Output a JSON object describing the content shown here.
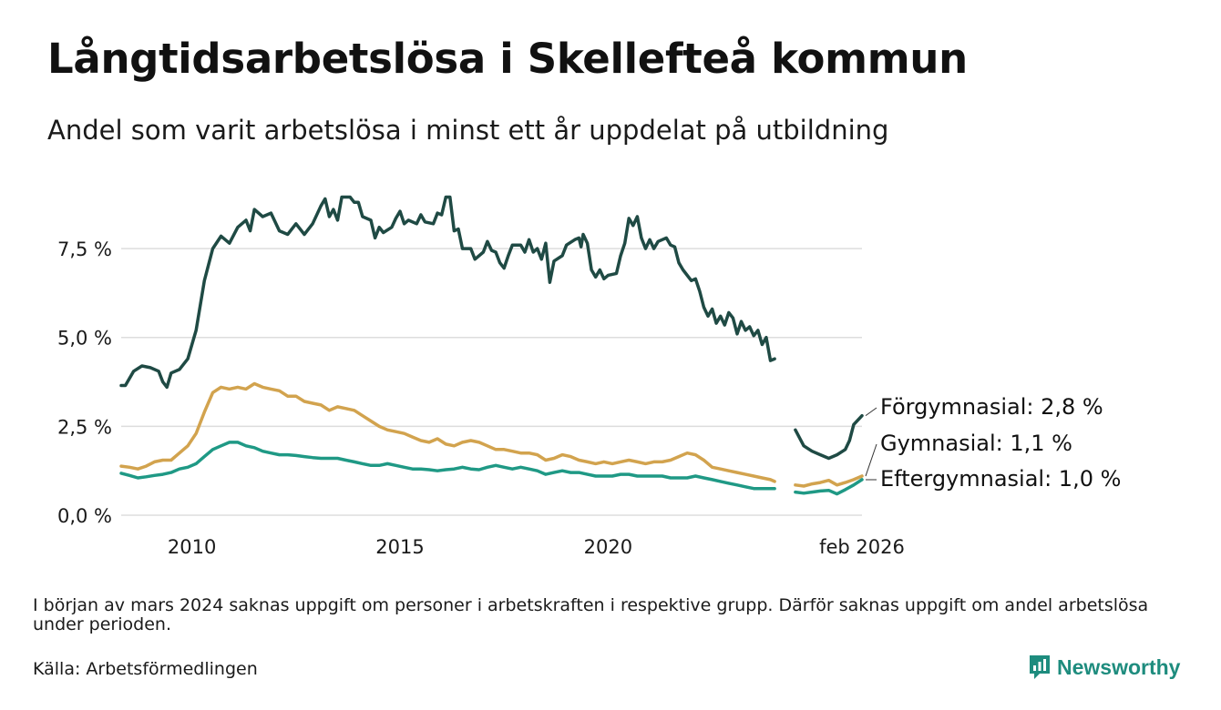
{
  "title": "Långtidsarbetslösa i Skellefteå kommun",
  "subtitle": "Andel som varit arbetslösa i minst ett år uppdelat på utbildning",
  "note": "I början av mars 2024 saknas uppgift om personer i arbetskraften i respektive grupp. Därför saknas uppgift om andel arbetslösa under perioden.",
  "source": "Källa: Arbetsförmedlingen",
  "brand": "Newsworthy",
  "colors": {
    "forgymnasial": "#1f4a44",
    "gymnasial": "#d2a34e",
    "eftergymnasial": "#1f9985",
    "grid": "#dddddd",
    "brand": "#1e8c7e"
  },
  "chart_data": {
    "type": "line",
    "title": "Långtidsarbetslösa i Skellefteå kommun",
    "xlabel": "",
    "ylabel": "",
    "ylim": [
      0,
      9.5
    ],
    "xlim": [
      2008.3,
      2026.1
    ],
    "y_ticks": [
      0,
      2.5,
      5.0,
      7.5
    ],
    "y_tick_labels": [
      "0,0 %",
      "2,5 %",
      "5,0 %",
      "7,5 %"
    ],
    "x_ticks": [
      2010,
      2015,
      2020,
      2026.1
    ],
    "x_tick_labels": [
      "2010",
      "2015",
      "2020",
      "feb 2026"
    ],
    "gap": {
      "from": 2024.0,
      "to": 2024.5
    },
    "series": [
      {
        "name": "Förgymnasial",
        "end_label": "Förgymnasial: 2,8 %",
        "color_key": "forgymnasial",
        "points": [
          [
            2008.3,
            3.65
          ],
          [
            2008.4,
            3.65
          ],
          [
            2008.6,
            4.05
          ],
          [
            2008.8,
            4.2
          ],
          [
            2009.0,
            4.15
          ],
          [
            2009.2,
            4.05
          ],
          [
            2009.3,
            3.75
          ],
          [
            2009.4,
            3.6
          ],
          [
            2009.5,
            4.0
          ],
          [
            2009.7,
            4.1
          ],
          [
            2009.9,
            4.4
          ],
          [
            2010.1,
            5.2
          ],
          [
            2010.3,
            6.6
          ],
          [
            2010.5,
            7.5
          ],
          [
            2010.7,
            7.85
          ],
          [
            2010.9,
            7.65
          ],
          [
            2011.1,
            8.1
          ],
          [
            2011.3,
            8.3
          ],
          [
            2011.4,
            8.0
          ],
          [
            2011.5,
            8.6
          ],
          [
            2011.7,
            8.4
          ],
          [
            2011.9,
            8.5
          ],
          [
            2012.1,
            8.0
          ],
          [
            2012.3,
            7.9
          ],
          [
            2012.5,
            8.2
          ],
          [
            2012.7,
            7.9
          ],
          [
            2012.9,
            8.2
          ],
          [
            2013.1,
            8.7
          ],
          [
            2013.2,
            8.9
          ],
          [
            2013.3,
            8.4
          ],
          [
            2013.4,
            8.6
          ],
          [
            2013.5,
            8.3
          ],
          [
            2013.6,
            8.95
          ],
          [
            2013.8,
            8.95
          ],
          [
            2013.9,
            8.8
          ],
          [
            2014.0,
            8.8
          ],
          [
            2014.1,
            8.4
          ],
          [
            2014.3,
            8.3
          ],
          [
            2014.4,
            7.8
          ],
          [
            2014.5,
            8.1
          ],
          [
            2014.6,
            7.95
          ],
          [
            2014.8,
            8.1
          ],
          [
            2014.9,
            8.35
          ],
          [
            2015.0,
            8.55
          ],
          [
            2015.1,
            8.2
          ],
          [
            2015.2,
            8.3
          ],
          [
            2015.4,
            8.2
          ],
          [
            2015.5,
            8.45
          ],
          [
            2015.6,
            8.25
          ],
          [
            2015.8,
            8.2
          ],
          [
            2015.9,
            8.5
          ],
          [
            2016.0,
            8.45
          ],
          [
            2016.1,
            8.95
          ],
          [
            2016.2,
            8.95
          ],
          [
            2016.3,
            8.0
          ],
          [
            2016.4,
            8.05
          ],
          [
            2016.5,
            7.5
          ],
          [
            2016.7,
            7.5
          ],
          [
            2016.8,
            7.2
          ],
          [
            2017.0,
            7.4
          ],
          [
            2017.1,
            7.7
          ],
          [
            2017.2,
            7.45
          ],
          [
            2017.3,
            7.4
          ],
          [
            2017.4,
            7.1
          ],
          [
            2017.5,
            6.95
          ],
          [
            2017.6,
            7.3
          ],
          [
            2017.7,
            7.6
          ],
          [
            2017.9,
            7.6
          ],
          [
            2018.0,
            7.4
          ],
          [
            2018.1,
            7.75
          ],
          [
            2018.2,
            7.4
          ],
          [
            2018.3,
            7.5
          ],
          [
            2018.4,
            7.2
          ],
          [
            2018.5,
            7.65
          ],
          [
            2018.6,
            6.55
          ],
          [
            2018.7,
            7.15
          ],
          [
            2018.9,
            7.3
          ],
          [
            2019.0,
            7.6
          ],
          [
            2019.2,
            7.75
          ],
          [
            2019.3,
            7.8
          ],
          [
            2019.35,
            7.55
          ],
          [
            2019.4,
            7.9
          ],
          [
            2019.5,
            7.65
          ],
          [
            2019.6,
            6.9
          ],
          [
            2019.7,
            6.7
          ],
          [
            2019.8,
            6.9
          ],
          [
            2019.9,
            6.65
          ],
          [
            2020.0,
            6.75
          ],
          [
            2020.2,
            6.8
          ],
          [
            2020.3,
            7.3
          ],
          [
            2020.4,
            7.65
          ],
          [
            2020.5,
            8.35
          ],
          [
            2020.6,
            8.15
          ],
          [
            2020.7,
            8.4
          ],
          [
            2020.8,
            7.8
          ],
          [
            2020.9,
            7.5
          ],
          [
            2021.0,
            7.75
          ],
          [
            2021.1,
            7.5
          ],
          [
            2021.2,
            7.7
          ],
          [
            2021.3,
            7.75
          ],
          [
            2021.4,
            7.8
          ],
          [
            2021.5,
            7.6
          ],
          [
            2021.6,
            7.55
          ],
          [
            2021.7,
            7.1
          ],
          [
            2021.8,
            6.9
          ],
          [
            2022.0,
            6.6
          ],
          [
            2022.1,
            6.65
          ],
          [
            2022.2,
            6.3
          ],
          [
            2022.3,
            5.85
          ],
          [
            2022.4,
            5.6
          ],
          [
            2022.5,
            5.8
          ],
          [
            2022.6,
            5.4
          ],
          [
            2022.7,
            5.6
          ],
          [
            2022.8,
            5.35
          ],
          [
            2022.9,
            5.7
          ],
          [
            2023.0,
            5.55
          ],
          [
            2023.1,
            5.1
          ],
          [
            2023.2,
            5.45
          ],
          [
            2023.3,
            5.2
          ],
          [
            2023.4,
            5.3
          ],
          [
            2023.5,
            5.05
          ],
          [
            2023.6,
            5.2
          ],
          [
            2023.7,
            4.8
          ],
          [
            2023.8,
            5.0
          ],
          [
            2023.9,
            4.35
          ],
          [
            2024.0,
            4.4
          ]
        ]
      },
      {
        "name": "Gymnasial",
        "end_label": "Gymnasial: 1,1 %",
        "color_key": "gymnasial",
        "points": [
          [
            2008.3,
            1.38
          ],
          [
            2008.5,
            1.35
          ],
          [
            2008.7,
            1.3
          ],
          [
            2008.9,
            1.38
          ],
          [
            2009.1,
            1.5
          ],
          [
            2009.3,
            1.55
          ],
          [
            2009.5,
            1.55
          ],
          [
            2009.7,
            1.75
          ],
          [
            2009.9,
            1.95
          ],
          [
            2010.1,
            2.3
          ],
          [
            2010.3,
            2.9
          ],
          [
            2010.5,
            3.45
          ],
          [
            2010.7,
            3.6
          ],
          [
            2010.9,
            3.55
          ],
          [
            2011.1,
            3.6
          ],
          [
            2011.3,
            3.55
          ],
          [
            2011.5,
            3.7
          ],
          [
            2011.7,
            3.6
          ],
          [
            2011.9,
            3.55
          ],
          [
            2012.1,
            3.5
          ],
          [
            2012.3,
            3.35
          ],
          [
            2012.5,
            3.35
          ],
          [
            2012.7,
            3.2
          ],
          [
            2012.9,
            3.15
          ],
          [
            2013.1,
            3.1
          ],
          [
            2013.3,
            2.95
          ],
          [
            2013.5,
            3.05
          ],
          [
            2013.7,
            3.0
          ],
          [
            2013.9,
            2.95
          ],
          [
            2014.1,
            2.8
          ],
          [
            2014.3,
            2.65
          ],
          [
            2014.5,
            2.5
          ],
          [
            2014.7,
            2.4
          ],
          [
            2014.9,
            2.35
          ],
          [
            2015.1,
            2.3
          ],
          [
            2015.3,
            2.2
          ],
          [
            2015.5,
            2.1
          ],
          [
            2015.7,
            2.05
          ],
          [
            2015.9,
            2.15
          ],
          [
            2016.1,
            2.0
          ],
          [
            2016.3,
            1.95
          ],
          [
            2016.5,
            2.05
          ],
          [
            2016.7,
            2.1
          ],
          [
            2016.9,
            2.05
          ],
          [
            2017.1,
            1.95
          ],
          [
            2017.3,
            1.85
          ],
          [
            2017.5,
            1.85
          ],
          [
            2017.7,
            1.8
          ],
          [
            2017.9,
            1.75
          ],
          [
            2018.1,
            1.75
          ],
          [
            2018.3,
            1.7
          ],
          [
            2018.5,
            1.55
          ],
          [
            2018.7,
            1.6
          ],
          [
            2018.9,
            1.7
          ],
          [
            2019.1,
            1.65
          ],
          [
            2019.3,
            1.55
          ],
          [
            2019.5,
            1.5
          ],
          [
            2019.7,
            1.45
          ],
          [
            2019.9,
            1.5
          ],
          [
            2020.1,
            1.45
          ],
          [
            2020.3,
            1.5
          ],
          [
            2020.5,
            1.55
          ],
          [
            2020.7,
            1.5
          ],
          [
            2020.9,
            1.45
          ],
          [
            2021.1,
            1.5
          ],
          [
            2021.3,
            1.5
          ],
          [
            2021.5,
            1.55
          ],
          [
            2021.7,
            1.65
          ],
          [
            2021.9,
            1.75
          ],
          [
            2022.1,
            1.7
          ],
          [
            2022.3,
            1.55
          ],
          [
            2022.5,
            1.35
          ],
          [
            2022.7,
            1.3
          ],
          [
            2022.9,
            1.25
          ],
          [
            2023.1,
            1.2
          ],
          [
            2023.3,
            1.15
          ],
          [
            2023.5,
            1.1
          ],
          [
            2023.7,
            1.05
          ],
          [
            2023.9,
            1.0
          ],
          [
            2024.0,
            0.95
          ]
        ]
      },
      {
        "name": "Eftergymnasial",
        "end_label": "Eftergymnasial: 1,0 %",
        "color_key": "eftergymnasial",
        "points": [
          [
            2008.3,
            1.18
          ],
          [
            2008.5,
            1.12
          ],
          [
            2008.7,
            1.05
          ],
          [
            2008.9,
            1.08
          ],
          [
            2009.1,
            1.12
          ],
          [
            2009.3,
            1.15
          ],
          [
            2009.5,
            1.2
          ],
          [
            2009.7,
            1.3
          ],
          [
            2009.9,
            1.35
          ],
          [
            2010.1,
            1.45
          ],
          [
            2010.3,
            1.65
          ],
          [
            2010.5,
            1.85
          ],
          [
            2010.7,
            1.95
          ],
          [
            2010.9,
            2.05
          ],
          [
            2011.1,
            2.05
          ],
          [
            2011.3,
            1.95
          ],
          [
            2011.5,
            1.9
          ],
          [
            2011.7,
            1.8
          ],
          [
            2011.9,
            1.75
          ],
          [
            2012.1,
            1.7
          ],
          [
            2012.3,
            1.7
          ],
          [
            2012.5,
            1.68
          ],
          [
            2012.7,
            1.65
          ],
          [
            2012.9,
            1.62
          ],
          [
            2013.1,
            1.6
          ],
          [
            2013.3,
            1.6
          ],
          [
            2013.5,
            1.6
          ],
          [
            2013.7,
            1.55
          ],
          [
            2013.9,
            1.5
          ],
          [
            2014.1,
            1.45
          ],
          [
            2014.3,
            1.4
          ],
          [
            2014.5,
            1.4
          ],
          [
            2014.7,
            1.45
          ],
          [
            2014.9,
            1.4
          ],
          [
            2015.1,
            1.35
          ],
          [
            2015.3,
            1.3
          ],
          [
            2015.5,
            1.3
          ],
          [
            2015.7,
            1.28
          ],
          [
            2015.9,
            1.25
          ],
          [
            2016.1,
            1.28
          ],
          [
            2016.3,
            1.3
          ],
          [
            2016.5,
            1.35
          ],
          [
            2016.7,
            1.3
          ],
          [
            2016.9,
            1.28
          ],
          [
            2017.1,
            1.35
          ],
          [
            2017.3,
            1.4
          ],
          [
            2017.5,
            1.35
          ],
          [
            2017.7,
            1.3
          ],
          [
            2017.9,
            1.35
          ],
          [
            2018.1,
            1.3
          ],
          [
            2018.3,
            1.25
          ],
          [
            2018.5,
            1.15
          ],
          [
            2018.7,
            1.2
          ],
          [
            2018.9,
            1.25
          ],
          [
            2019.1,
            1.2
          ],
          [
            2019.3,
            1.2
          ],
          [
            2019.5,
            1.15
          ],
          [
            2019.7,
            1.1
          ],
          [
            2019.9,
            1.1
          ],
          [
            2020.1,
            1.1
          ],
          [
            2020.3,
            1.15
          ],
          [
            2020.5,
            1.15
          ],
          [
            2020.7,
            1.1
          ],
          [
            2020.9,
            1.1
          ],
          [
            2021.1,
            1.1
          ],
          [
            2021.3,
            1.1
          ],
          [
            2021.5,
            1.05
          ],
          [
            2021.7,
            1.05
          ],
          [
            2021.9,
            1.05
          ],
          [
            2022.1,
            1.1
          ],
          [
            2022.3,
            1.05
          ],
          [
            2022.5,
            1.0
          ],
          [
            2022.7,
            0.95
          ],
          [
            2022.9,
            0.9
          ],
          [
            2023.1,
            0.85
          ],
          [
            2023.3,
            0.8
          ],
          [
            2023.5,
            0.75
          ],
          [
            2023.7,
            0.75
          ],
          [
            2023.9,
            0.75
          ],
          [
            2024.0,
            0.75
          ]
        ]
      }
    ]
  }
}
